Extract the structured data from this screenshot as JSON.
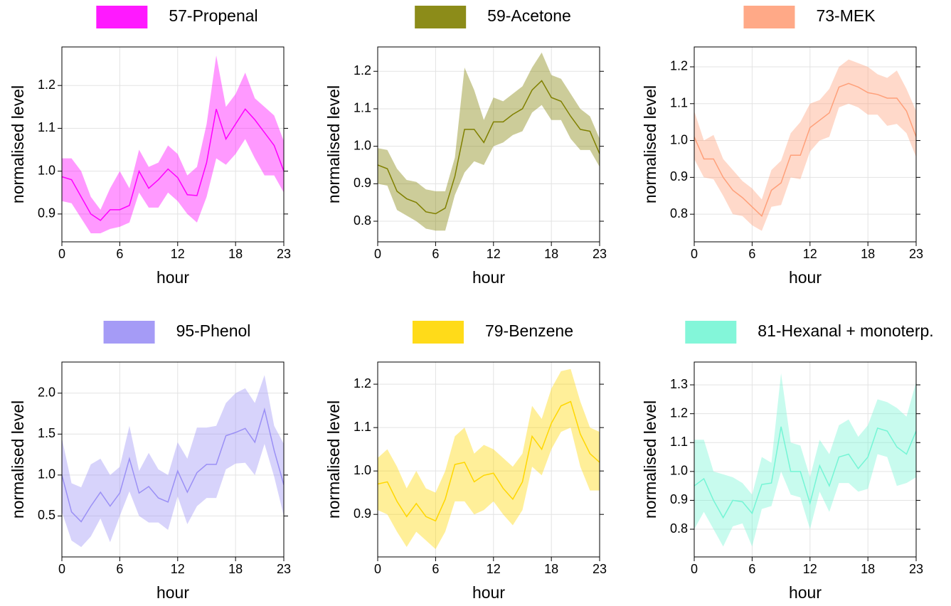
{
  "chart_data": [
    {
      "type": "line",
      "x": [
        0,
        1,
        2,
        3,
        4,
        5,
        6,
        7,
        8,
        9,
        10,
        11,
        12,
        13,
        14,
        15,
        16,
        17,
        18,
        19,
        20,
        21,
        22,
        23
      ],
      "xlim": [
        0,
        23
      ],
      "xticks": [
        0,
        6,
        12,
        18,
        23
      ],
      "ylim": [
        0.835,
        1.29
      ],
      "yticks": [
        0.9,
        {
          "value": 1,
          "label": "1.0"
        },
        1.1,
        1.2
      ],
      "xlabel": "hour",
      "ylabel": "normalised level",
      "grid": true,
      "series": [
        {
          "name": "57-Propenal",
          "color": "#ff00ff",
          "values": [
            0.987,
            0.98,
            0.94,
            0.9,
            0.885,
            0.91,
            0.91,
            0.92,
            1.0,
            0.96,
            0.98,
            1.005,
            0.985,
            0.945,
            0.943,
            1.02,
            1.145,
            1.075,
            1.11,
            1.145,
            1.12,
            1.09,
            1.06,
            1.0
          ],
          "upper": [
            1.03,
            1.03,
            1.0,
            0.94,
            0.91,
            0.96,
            1.0,
            0.96,
            1.05,
            1.01,
            1.02,
            1.06,
            1.04,
            0.99,
            1.01,
            1.11,
            1.27,
            1.15,
            1.18,
            1.23,
            1.17,
            1.15,
            1.13,
            1.07
          ],
          "lower": [
            0.93,
            0.925,
            0.89,
            0.855,
            0.855,
            0.865,
            0.87,
            0.88,
            0.95,
            0.915,
            0.915,
            0.95,
            0.93,
            0.9,
            0.88,
            0.94,
            1.03,
            1.015,
            1.04,
            1.075,
            1.03,
            0.99,
            0.99,
            0.95
          ]
        }
      ]
    },
    {
      "type": "line",
      "x": [
        0,
        1,
        2,
        3,
        4,
        5,
        6,
        7,
        8,
        9,
        10,
        11,
        12,
        13,
        14,
        15,
        16,
        17,
        18,
        19,
        20,
        21,
        22,
        23
      ],
      "xlim": [
        0,
        23
      ],
      "xticks": [
        0,
        6,
        12,
        18,
        23
      ],
      "ylim": [
        0.745,
        1.265
      ],
      "yticks": [
        0.8,
        0.9,
        {
          "value": 1,
          "label": "1.0"
        },
        1.1,
        1.2
      ],
      "xlabel": "hour",
      "ylabel": "normalised level",
      "grid": true,
      "series": [
        {
          "name": "59-Acetone",
          "color": "#808000",
          "values": [
            0.95,
            0.94,
            0.88,
            0.86,
            0.85,
            0.825,
            0.82,
            0.835,
            0.92,
            1.045,
            1.045,
            1.01,
            1.065,
            1.065,
            1.085,
            1.1,
            1.15,
            1.175,
            1.13,
            1.12,
            1.08,
            1.045,
            1.04,
            0.98
          ],
          "upper": [
            0.995,
            0.99,
            0.94,
            0.91,
            0.905,
            0.885,
            0.88,
            0.88,
            0.97,
            1.21,
            1.15,
            1.07,
            1.13,
            1.12,
            1.14,
            1.16,
            1.21,
            1.25,
            1.19,
            1.18,
            1.14,
            1.1,
            1.08,
            1.02
          ],
          "lower": [
            0.9,
            0.895,
            0.83,
            0.815,
            0.8,
            0.78,
            0.775,
            0.775,
            0.87,
            0.93,
            0.96,
            0.95,
            1.0,
            1.01,
            1.03,
            1.04,
            1.09,
            1.11,
            1.07,
            1.07,
            1.02,
            0.99,
            0.99,
            0.945
          ]
        }
      ]
    },
    {
      "type": "line",
      "x": [
        0,
        1,
        2,
        3,
        4,
        5,
        6,
        7,
        8,
        9,
        10,
        11,
        12,
        13,
        14,
        15,
        16,
        17,
        18,
        19,
        20,
        21,
        22,
        23
      ],
      "xlim": [
        0,
        23
      ],
      "xticks": [
        0,
        6,
        12,
        18,
        23
      ],
      "ylim": [
        0.725,
        1.254
      ],
      "yticks": [
        0.8,
        0.9,
        {
          "value": 1,
          "label": "1.0"
        },
        1.1,
        1.2
      ],
      "xlabel": "hour",
      "ylabel": "normalised level",
      "grid": true,
      "series": [
        {
          "name": "73-MEK",
          "color": "#ffa07a",
          "values": [
            1.01,
            0.95,
            0.95,
            0.9,
            0.865,
            0.845,
            0.82,
            0.795,
            0.865,
            0.885,
            0.96,
            0.96,
            1.035,
            1.055,
            1.075,
            1.145,
            1.155,
            1.145,
            1.13,
            1.125,
            1.115,
            1.115,
            1.08,
            1.01
          ],
          "upper": [
            1.08,
            1.0,
            1.015,
            0.95,
            0.92,
            0.89,
            0.87,
            0.84,
            0.92,
            0.945,
            1.02,
            1.05,
            1.1,
            1.11,
            1.14,
            1.2,
            1.22,
            1.21,
            1.2,
            1.18,
            1.17,
            1.19,
            1.14,
            1.08
          ],
          "lower": [
            0.95,
            0.9,
            0.895,
            0.85,
            0.8,
            0.795,
            0.77,
            0.755,
            0.82,
            0.825,
            0.9,
            0.895,
            0.97,
            1.0,
            1.01,
            1.09,
            1.1,
            1.09,
            1.07,
            1.07,
            1.04,
            1.045,
            1.02,
            0.955
          ]
        }
      ]
    },
    {
      "type": "line",
      "x": [
        0,
        1,
        2,
        3,
        4,
        5,
        6,
        7,
        8,
        9,
        10,
        11,
        12,
        13,
        14,
        15,
        16,
        17,
        18,
        19,
        20,
        21,
        22,
        23
      ],
      "xlim": [
        0,
        23
      ],
      "xticks": [
        0,
        6,
        12,
        18,
        23
      ],
      "ylim": [
        0,
        2.38
      ],
      "yticks": [
        0.5,
        {
          "value": 1,
          "label": "1.0"
        },
        1.5,
        {
          "value": 2,
          "label": "2.0"
        }
      ],
      "xlabel": "hour",
      "ylabel": "normalised level",
      "grid": true,
      "series": [
        {
          "name": "95-Phenol",
          "color": "#9b90f5",
          "values": [
            1.0,
            0.55,
            0.43,
            0.62,
            0.79,
            0.62,
            0.78,
            1.2,
            0.78,
            0.86,
            0.72,
            0.67,
            1.05,
            0.79,
            1.03,
            1.13,
            1.13,
            1.48,
            1.52,
            1.57,
            1.4,
            1.8,
            1.3,
            0.88
          ],
          "upper": [
            1.45,
            0.9,
            0.85,
            1.13,
            1.2,
            1.0,
            1.1,
            1.6,
            1.05,
            1.27,
            1.07,
            1.0,
            1.4,
            1.2,
            1.58,
            1.58,
            1.6,
            1.88,
            2.0,
            2.06,
            1.88,
            2.22,
            1.6,
            1.38
          ],
          "lower": [
            0.55,
            0.2,
            0.12,
            0.25,
            0.47,
            0.18,
            0.5,
            0.8,
            0.5,
            0.42,
            0.42,
            0.33,
            0.74,
            0.4,
            0.62,
            0.72,
            0.72,
            1.07,
            1.14,
            1.15,
            1.0,
            1.38,
            0.98,
            0.5
          ]
        }
      ]
    },
    {
      "type": "line",
      "x": [
        0,
        1,
        2,
        3,
        4,
        5,
        6,
        7,
        8,
        9,
        10,
        11,
        12,
        13,
        14,
        15,
        16,
        17,
        18,
        19,
        20,
        21,
        22,
        23
      ],
      "xlim": [
        0,
        23
      ],
      "xticks": [
        0,
        6,
        12,
        18,
        23
      ],
      "ylim": [
        0.802,
        1.251
      ],
      "yticks": [
        0.9,
        {
          "value": 1,
          "label": "1.0"
        },
        1.1,
        1.2
      ],
      "xlabel": "hour",
      "ylabel": "normalised level",
      "grid": true,
      "series": [
        {
          "name": "79-Benzene",
          "color": "#ffd700",
          "values": [
            0.97,
            0.975,
            0.93,
            0.895,
            0.925,
            0.895,
            0.885,
            0.935,
            1.015,
            1.02,
            0.975,
            0.99,
            0.995,
            0.96,
            0.935,
            0.975,
            1.08,
            1.05,
            1.11,
            1.15,
            1.16,
            1.085,
            1.04,
            1.02
          ],
          "upper": [
            1.03,
            1.05,
            1.01,
            0.96,
            1.0,
            0.96,
            0.95,
            1.0,
            1.08,
            1.1,
            1.04,
            1.06,
            1.05,
            1.03,
            1.01,
            1.04,
            1.15,
            1.12,
            1.19,
            1.23,
            1.235,
            1.16,
            1.1,
            1.09
          ],
          "lower": [
            0.91,
            0.9,
            0.86,
            0.825,
            0.86,
            0.84,
            0.82,
            0.86,
            0.93,
            0.93,
            0.9,
            0.91,
            0.93,
            0.9,
            0.875,
            0.91,
            1.01,
            0.99,
            1.05,
            1.09,
            1.1,
            1.01,
            0.955,
            0.955
          ]
        }
      ]
    },
    {
      "type": "line",
      "x": [
        0,
        1,
        2,
        3,
        4,
        5,
        6,
        7,
        8,
        9,
        10,
        11,
        12,
        13,
        14,
        15,
        16,
        17,
        18,
        19,
        20,
        21,
        22,
        23
      ],
      "xlim": [
        0,
        23
      ],
      "xticks": [
        0,
        6,
        12,
        18,
        23
      ],
      "ylim": [
        0.704,
        1.379
      ],
      "yticks": [
        0.8,
        0.9,
        {
          "value": 1,
          "label": "1.0"
        },
        1.1,
        1.2,
        1.3
      ],
      "xlabel": "hour",
      "ylabel": "normalised level",
      "grid": true,
      "series": [
        {
          "name": "81-Hexanal + monoterp.",
          "color": "#75f5d5",
          "values": [
            0.95,
            0.975,
            0.9,
            0.84,
            0.9,
            0.895,
            0.855,
            0.955,
            0.96,
            1.155,
            1.0,
            1.0,
            0.89,
            1.02,
            0.95,
            1.05,
            1.06,
            1.01,
            1.05,
            1.15,
            1.14,
            1.085,
            1.06,
            1.14
          ],
          "upper": [
            1.11,
            1.11,
            1.0,
            0.99,
            0.98,
            0.96,
            0.92,
            1.05,
            1.03,
            1.34,
            1.1,
            1.09,
            0.98,
            1.11,
            1.06,
            1.16,
            1.18,
            1.12,
            1.16,
            1.25,
            1.24,
            1.22,
            1.19,
            1.31
          ],
          "lower": [
            0.8,
            0.86,
            0.8,
            0.74,
            0.81,
            0.82,
            0.74,
            0.87,
            0.88,
            1.0,
            0.92,
            0.91,
            0.8,
            0.93,
            0.86,
            0.96,
            0.96,
            0.93,
            0.94,
            1.06,
            1.05,
            0.95,
            0.96,
            0.98
          ]
        }
      ]
    }
  ]
}
